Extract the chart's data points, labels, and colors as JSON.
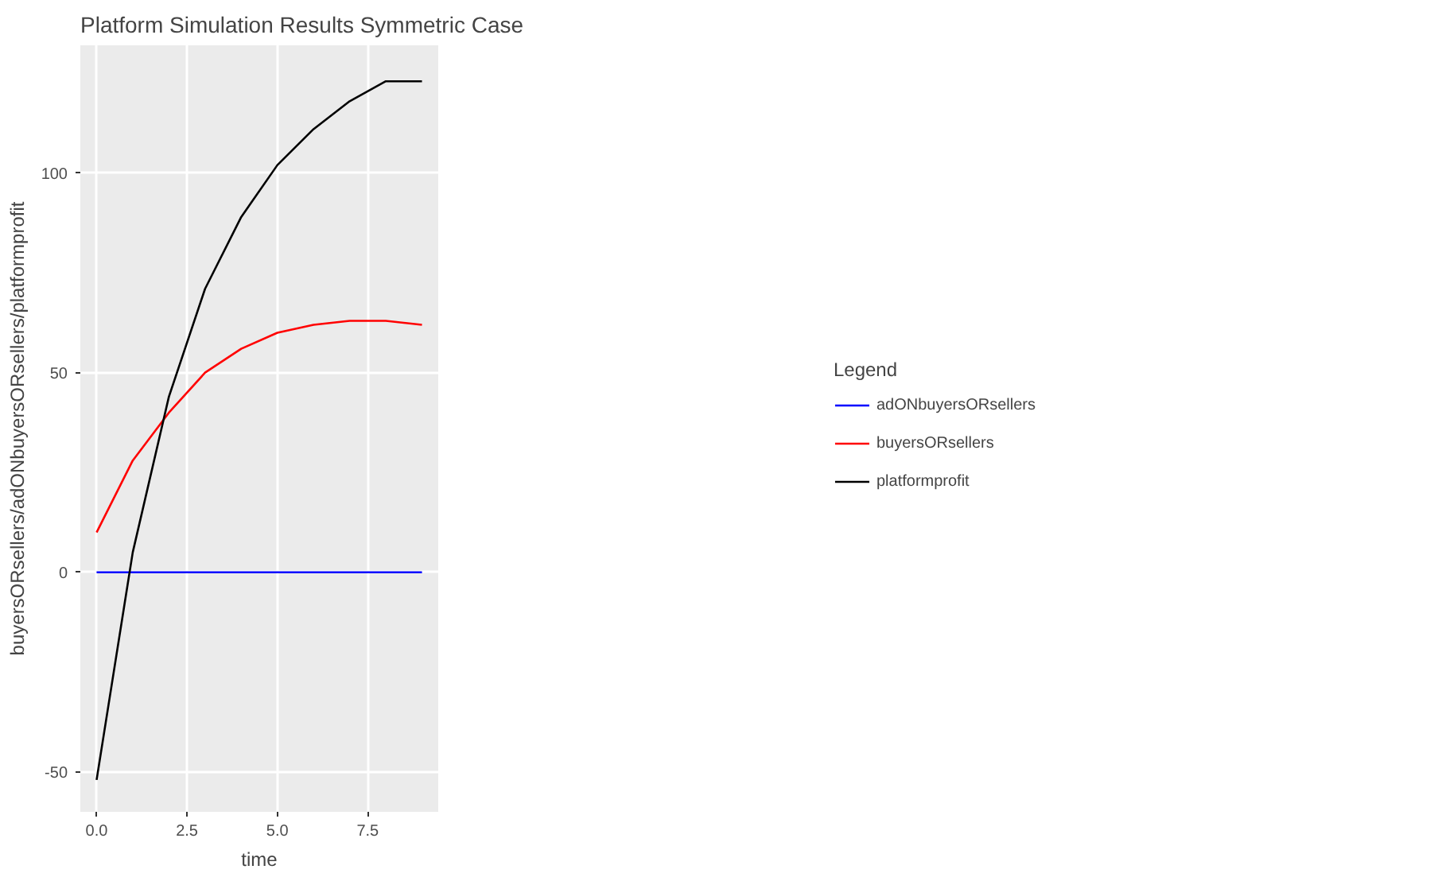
{
  "chart_data": {
    "type": "line",
    "title": "Platform Simulation Results Symmetric Case",
    "xlabel": "time",
    "ylabel": "buyersORsellers/adONbuyersORsellers/platformprofit",
    "legend_title": "Legend",
    "x": [
      0,
      1,
      2,
      3,
      4,
      5,
      6,
      7,
      8,
      9
    ],
    "series": [
      {
        "name": "adONbuyersORsellers",
        "color": "#0000ff",
        "values": [
          0,
          0,
          0,
          0,
          0,
          0,
          0,
          0,
          0,
          0
        ]
      },
      {
        "name": "buyersORsellers",
        "color": "#ff0000",
        "values": [
          10,
          28,
          40,
          50,
          56,
          60,
          62,
          63,
          63,
          62
        ]
      },
      {
        "name": "platformprofit",
        "color": "#000000",
        "values": [
          -52,
          5,
          44,
          71,
          89,
          102,
          111,
          118,
          123,
          123
        ]
      }
    ],
    "xlim": [
      -0.45,
      9.45
    ],
    "ylim": [
      -60,
      132
    ],
    "xticks": [
      {
        "value": 0,
        "label": "0.0"
      },
      {
        "value": 2.5,
        "label": "2.5"
      },
      {
        "value": 5,
        "label": "5.0"
      },
      {
        "value": 7.5,
        "label": "7.5"
      }
    ],
    "yticks": [
      -50,
      0,
      50,
      100
    ],
    "grid": true,
    "legend": "right"
  }
}
